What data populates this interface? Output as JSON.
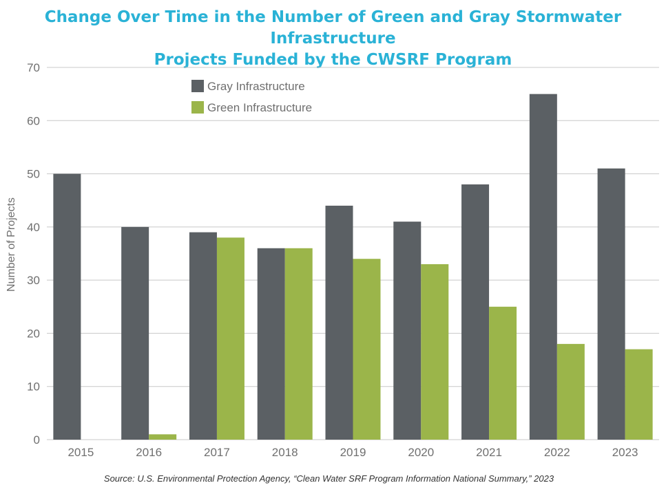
{
  "chart_data": {
    "type": "bar",
    "title_lines": [
      "Change Over Time in the Number of Green and Gray Stormwater Infrastructure",
      "Projects Funded by the CWSRF Program"
    ],
    "xlabel": "",
    "ylabel": "Number of Projects",
    "ylim": [
      0,
      70
    ],
    "yticks": [
      0,
      10,
      20,
      30,
      40,
      50,
      60,
      70
    ],
    "categories": [
      "2015",
      "2016",
      "2017",
      "2018",
      "2019",
      "2020",
      "2021",
      "2022",
      "2023"
    ],
    "series": [
      {
        "name": "Gray Infrastructure",
        "color": "#5b6064",
        "values": [
          50,
          40,
          39,
          36,
          44,
          41,
          48,
          65,
          51
        ]
      },
      {
        "name": "Green Infrastructure",
        "color": "#9bb54a",
        "values": [
          0,
          1,
          38,
          36,
          34,
          33,
          25,
          18,
          17
        ]
      }
    ],
    "grid": true,
    "legend_position": "top-left",
    "source": "Source: U.S. Environmental Protection Agency, “Clean Water SRF Program Information National Summary,” 2023"
  },
  "colors": {
    "title": "#2ab2d6",
    "gridline": "#c8c8c8",
    "axis_text": "#6f6f6f"
  }
}
